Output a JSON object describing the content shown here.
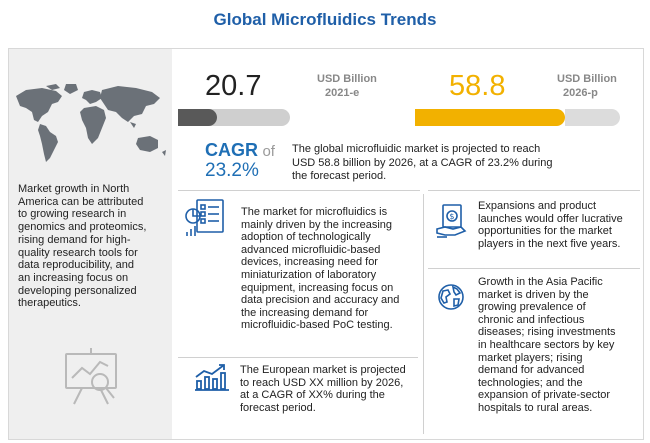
{
  "title": "Global Microfluidics Trends",
  "market_start": {
    "value": "20.7",
    "unit": "USD Billion",
    "year": "2021-e",
    "bar_fill": 0.35
  },
  "market_end": {
    "value": "58.8",
    "unit": "USD Billion",
    "year": "2026-p",
    "bar_fill": 0.73
  },
  "cagr": {
    "label": "CAGR",
    "of": "of",
    "value": "23.2%",
    "description_lines": [
      "The global microfluidic market is projected to reach",
      "USD 58.8 billion by 2026, at a CAGR of 23.2% during",
      "the forecast period."
    ]
  },
  "left_panel": {
    "lines": [
      "Market growth in North",
      "America can be attributed",
      "to growing research in",
      "genomics and proteomics,",
      "rising demand for high-",
      "quality research tools for",
      "data reproducibility, and",
      "an increasing focus on",
      "developing personalized",
      "therapeutics."
    ],
    "icons": [
      "world-map-icon",
      "presentation-chart-icon"
    ]
  },
  "drivers": {
    "icon": "checklist-chart-icon",
    "lines": [
      "The market for microfluidics is",
      "mainly driven by the increasing",
      "adoption of technologically",
      "advanced microfluidic-based",
      "devices, increasing need for",
      "miniaturization of laboratory",
      "equipment, increasing focus on",
      "data precision and accuracy and",
      "the increasing demand for",
      "microfluidic-based PoC testing."
    ]
  },
  "europe": {
    "icon": "growth-chart-icon",
    "lines": [
      "The European market is projected",
      "to reach USD XX million by 2026,",
      "at a CAGR of XX% during the",
      "forecast period."
    ]
  },
  "expansions": {
    "icon": "money-hand-icon",
    "lines": [
      "Expansions and product",
      "launches would offer lucrative",
      "opportunities for the market",
      "players in the next five years."
    ]
  },
  "asia": {
    "icon": "globe-icon",
    "lines": [
      "Growth in the Asia Pacific",
      "market is driven by the",
      "growing prevalence of",
      "chronic and infectious",
      "diseases; rising investments",
      "in healthcare sectors by key",
      "market players; rising",
      "demand for advanced",
      "technologies; and the",
      "expansion of private-sector",
      "hospitals to rural areas."
    ]
  },
  "colors": {
    "accent_blue": "#1f5fa8",
    "gold": "#f2b100",
    "dark_bar": "#595959",
    "panel_grey": "#efefef"
  }
}
